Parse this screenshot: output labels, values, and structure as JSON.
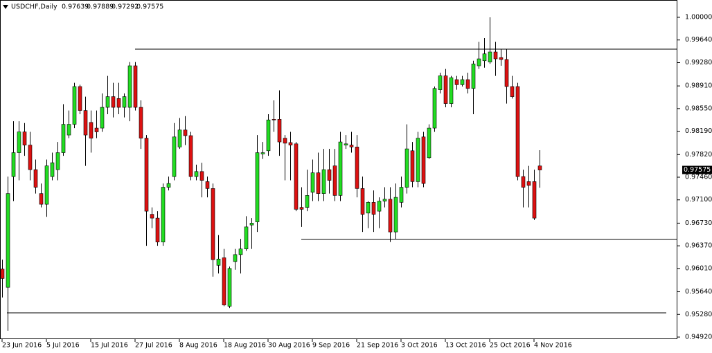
{
  "chart_data": {
    "type": "candlestick",
    "title": "USDCHF,Daily",
    "categories": [
      "23 Jun 2016",
      null,
      null,
      null,
      null,
      null,
      null,
      null,
      "5 Jul 2016",
      null,
      null,
      null,
      null,
      null,
      null,
      null,
      "15 Jul 2016",
      null,
      null,
      null,
      null,
      null,
      null,
      null,
      "27 Jul 2016",
      null,
      null,
      null,
      null,
      null,
      null,
      null,
      "8 Aug 2016",
      null,
      null,
      null,
      null,
      null,
      null,
      null,
      "18 Aug 2016",
      null,
      null,
      null,
      null,
      null,
      null,
      null,
      "30 Aug 2016",
      null,
      null,
      null,
      null,
      null,
      null,
      null,
      "9 Sep 2016",
      null,
      null,
      null,
      null,
      null,
      null,
      null,
      "21 Sep 2016",
      null,
      null,
      null,
      null,
      null,
      null,
      null,
      "3 Oct 2016",
      null,
      null,
      null,
      null,
      null,
      null,
      null,
      "13 Oct 2016",
      null,
      null,
      null,
      null,
      null,
      null,
      null,
      "25 Oct 2016",
      null,
      null,
      null,
      null,
      null,
      null,
      null,
      "4 Nov 2016",
      null
    ],
    "open": [
      0.96,
      0.9571,
      0.9747,
      0.9785,
      0.9818,
      0.9797,
      0.9758,
      0.972,
      0.9703,
      0.9747,
      0.9758,
      0.9785,
      0.9813,
      0.983,
      0.989,
      0.9852,
      0.9833,
      0.9824,
      0.9824,
      0.9857,
      0.9874,
      0.9871,
      0.9857,
      0.9857,
      0.9923,
      0.9857,
      0.9808,
      0.9687,
      0.9681,
      0.9643,
      0.973,
      0.9747,
      0.9794,
      0.9821,
      0.9812,
      0.9747,
      0.9755,
      0.9739,
      0.9728,
      0.9606,
      0.9618,
      0.9541,
      0.9612,
      0.9623,
      0.9632,
      0.967,
      0.9675,
      0.9783,
      0.9788,
      0.9838,
      0.9838,
      0.9808,
      0.9801,
      0.9799,
      0.9698,
      0.9698,
      0.9722,
      0.9753,
      0.972,
      0.9758,
      0.9764,
      0.9717,
      0.9797,
      0.9797,
      0.9794,
      0.9728,
      0.9689,
      0.9706,
      0.9692,
      0.9708,
      0.9711,
      0.9659,
      0.9706,
      0.973,
      0.9788,
      0.9739,
      0.981,
      0.9777,
      0.9824,
      0.9885,
      0.9907,
      0.9863,
      0.9901,
      0.9893,
      0.9901,
      0.9887,
      0.9923,
      0.9931,
      0.9929,
      0.9945,
      0.9936,
      0.9933,
      0.989,
      0.989,
      0.9747,
      0.9739,
      0.9739,
      0.97639
    ],
    "high": [
      0.9615,
      0.9747,
      0.9835,
      0.9835,
      0.9832,
      0.9818,
      0.9774,
      0.9736,
      0.9774,
      0.9785,
      0.9802,
      0.9862,
      0.9852,
      0.9896,
      0.9893,
      0.9874,
      0.9852,
      0.9852,
      0.9879,
      0.9907,
      0.9896,
      0.9896,
      0.9879,
      0.9929,
      0.9929,
      0.9868,
      0.9813,
      0.9698,
      0.9692,
      0.9736,
      0.9747,
      0.9832,
      0.984,
      0.9843,
      0.9818,
      0.9766,
      0.9769,
      0.9747,
      0.9736,
      0.9654,
      0.9632,
      0.9604,
      0.9632,
      0.9648,
      0.9684,
      0.9681,
      0.9813,
      0.9802,
      0.9846,
      0.9868,
      0.9884,
      0.9813,
      0.9818,
      0.9802,
      0.973,
      0.9758,
      0.9774,
      0.9785,
      0.9791,
      0.9791,
      0.9791,
      0.9818,
      0.9813,
      0.9818,
      0.9813,
      0.9747,
      0.9708,
      0.9725,
      0.9714,
      0.973,
      0.973,
      0.9736,
      0.9747,
      0.983,
      0.9802,
      0.9818,
      0.9818,
      0.983,
      0.989,
      0.9912,
      0.9918,
      0.9907,
      0.9907,
      0.9907,
      0.9912,
      0.9931,
      0.9961,
      0.9967,
      1.0,
      0.9961,
      0.995,
      0.995,
      0.9907,
      0.9896,
      0.9758,
      0.9764,
      0.9758,
      0.97889
    ],
    "low": [
      0.9555,
      0.9502,
      0.9708,
      0.9741,
      0.978,
      0.9741,
      0.972,
      0.9698,
      0.9683,
      0.9741,
      0.9741,
      0.978,
      0.9808,
      0.9824,
      0.9846,
      0.9764,
      0.9785,
      0.9808,
      0.9818,
      0.9846,
      0.9841,
      0.9846,
      0.9841,
      0.9835,
      0.9852,
      0.9791,
      0.9637,
      0.9665,
      0.9637,
      0.9637,
      0.9725,
      0.9741,
      0.9791,
      0.9797,
      0.9741,
      0.9741,
      0.9714,
      0.9714,
      0.9588,
      0.9593,
      0.9541,
      0.9538,
      0.9599,
      0.9593,
      0.9629,
      0.9632,
      0.9659,
      0.9775,
      0.978,
      0.9818,
      0.978,
      0.9741,
      0.9741,
      0.9692,
      0.9667,
      0.9692,
      0.9708,
      0.9708,
      0.9708,
      0.972,
      0.9708,
      0.9708,
      0.9791,
      0.9785,
      0.9714,
      0.9659,
      0.9665,
      0.9659,
      0.9665,
      0.9698,
      0.9643,
      0.9648,
      0.9698,
      0.972,
      0.973,
      0.973,
      0.973,
      0.9775,
      0.9818,
      0.9879,
      0.9857,
      0.9857,
      0.9885,
      0.989,
      0.9879,
      0.9846,
      0.9918,
      0.992,
      0.9926,
      0.9907,
      0.9923,
      0.9863,
      0.9871,
      0.9741,
      0.9698,
      0.9698,
      0.9678,
      0.97292
    ],
    "close": [
      0.9585,
      0.972,
      0.9785,
      0.9818,
      0.9797,
      0.9758,
      0.973,
      0.9703,
      0.9764,
      0.9769,
      0.9785,
      0.983,
      0.983,
      0.989,
      0.9852,
      0.9813,
      0.9808,
      0.9818,
      0.9857,
      0.9874,
      0.9857,
      0.9857,
      0.9874,
      0.9923,
      0.9857,
      0.9808,
      0.9692,
      0.9681,
      0.9643,
      0.973,
      0.9736,
      0.981,
      0.9821,
      0.9812,
      0.9747,
      0.9755,
      0.9741,
      0.9728,
      0.9615,
      0.9616,
      0.9543,
      0.9601,
      0.9623,
      0.9632,
      0.9667,
      0.9673,
      0.9785,
      0.9785,
      0.9837,
      0.9837,
      0.9802,
      0.98,
      0.9797,
      0.9695,
      0.9695,
      0.9717,
      0.9753,
      0.972,
      0.9758,
      0.9741,
      0.9717,
      0.9802,
      0.9799,
      0.9794,
      0.9728,
      0.9687,
      0.9706,
      0.9687,
      0.9708,
      0.9711,
      0.9659,
      0.9714,
      0.973,
      0.9791,
      0.9739,
      0.9808,
      0.9736,
      0.9824,
      0.9887,
      0.9907,
      0.9863,
      0.9904,
      0.9893,
      0.9901,
      0.9887,
      0.9926,
      0.9934,
      0.9942,
      0.9945,
      0.9934,
      0.9933,
      0.989,
      0.9874,
      0.9747,
      0.973,
      0.9733,
      0.9681,
      0.97575
    ],
    "up_color": "#22dd22",
    "down_color": "#dd1111",
    "levels": [
      0.99494,
      0.96475,
      0.95305
    ],
    "ylim": [
      0.94887,
      1.00275
    ],
    "yticks": [
      {
        "value": 1.0,
        "label": "1.00000"
      },
      {
        "value": 0.9964,
        "label": "0.99640"
      },
      {
        "value": 0.9928,
        "label": "0.99280"
      },
      {
        "value": 0.9891,
        "label": "0.98910"
      },
      {
        "value": 0.9855,
        "label": "0.98550"
      },
      {
        "value": 0.9819,
        "label": "0.98190"
      },
      {
        "value": 0.9782,
        "label": "0.97820"
      },
      {
        "value": 0.9746,
        "label": "0.97460"
      },
      {
        "value": 0.971,
        "label": "0.97100"
      },
      {
        "value": 0.9673,
        "label": "0.96730"
      },
      {
        "value": 0.9637,
        "label": "0.96370"
      },
      {
        "value": 0.9601,
        "label": "0.96010"
      },
      {
        "value": 0.9564,
        "label": "0.95640"
      },
      {
        "value": 0.9528,
        "label": "0.95280"
      },
      {
        "value": 0.9492,
        "label": "0.94920"
      }
    ],
    "grid": false
  }
}
